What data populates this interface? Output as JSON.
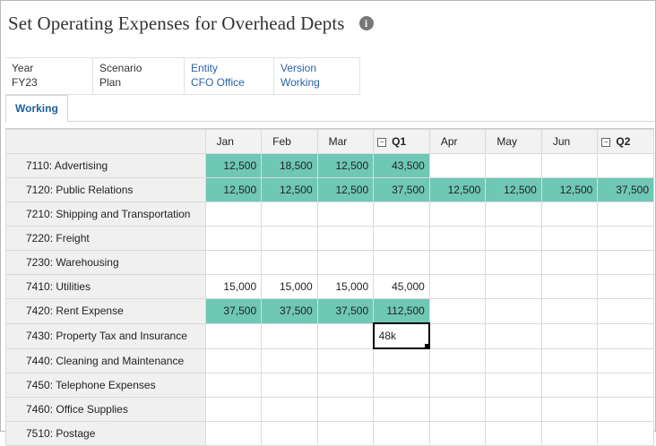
{
  "page_title": "Set Operating Expenses for Overhead Depts",
  "pov": [
    {
      "label": "Year",
      "value": "FY23",
      "link": false
    },
    {
      "label": "Scenario",
      "value": "Plan",
      "link": false
    },
    {
      "label": "Entity",
      "value": "CFO Office",
      "link": true
    },
    {
      "label": "Version",
      "value": "Working",
      "link": true
    }
  ],
  "tabs": [
    {
      "label": "Working",
      "active": true
    }
  ],
  "columns": [
    {
      "label": "Jan",
      "quarter": false
    },
    {
      "label": "Feb",
      "quarter": false
    },
    {
      "label": "Mar",
      "quarter": false
    },
    {
      "label": "Q1",
      "quarter": true
    },
    {
      "label": "Apr",
      "quarter": false
    },
    {
      "label": "May",
      "quarter": false
    },
    {
      "label": "Jun",
      "quarter": false
    },
    {
      "label": "Q2",
      "quarter": true
    }
  ],
  "collapse_symbol": "−",
  "rows": [
    {
      "label": "7110: Advertising",
      "values": [
        "12,500",
        "18,500",
        "12,500",
        "43,500",
        "",
        "",
        "",
        ""
      ],
      "highlight": [
        true,
        true,
        true,
        true,
        false,
        false,
        false,
        false
      ]
    },
    {
      "label": "7120: Public Relations",
      "values": [
        "12,500",
        "12,500",
        "12,500",
        "37,500",
        "12,500",
        "12,500",
        "12,500",
        "37,500"
      ],
      "highlight": [
        true,
        true,
        true,
        true,
        true,
        true,
        true,
        true
      ]
    },
    {
      "label": "7210: Shipping and Transportation",
      "values": [
        "",
        "",
        "",
        "",
        "",
        "",
        "",
        ""
      ],
      "highlight": [
        false,
        false,
        false,
        false,
        false,
        false,
        false,
        false
      ]
    },
    {
      "label": "7220: Freight",
      "values": [
        "",
        "",
        "",
        "",
        "",
        "",
        "",
        ""
      ],
      "highlight": [
        false,
        false,
        false,
        false,
        false,
        false,
        false,
        false
      ]
    },
    {
      "label": "7230: Warehousing",
      "values": [
        "",
        "",
        "",
        "",
        "",
        "",
        "",
        ""
      ],
      "highlight": [
        false,
        false,
        false,
        false,
        false,
        false,
        false,
        false
      ]
    },
    {
      "label": "7410: Utilities",
      "values": [
        "15,000",
        "15,000",
        "15,000",
        "45,000",
        "",
        "",
        "",
        ""
      ],
      "highlight": [
        false,
        false,
        false,
        false,
        false,
        false,
        false,
        false
      ]
    },
    {
      "label": "7420: Rent Expense",
      "values": [
        "37,500",
        "37,500",
        "37,500",
        "112,500",
        "",
        "",
        "",
        ""
      ],
      "highlight": [
        true,
        true,
        true,
        true,
        false,
        false,
        false,
        false
      ]
    },
    {
      "label": "7430: Property Tax and Insurance",
      "values": [
        "",
        "",
        "",
        "48k",
        "",
        "",
        "",
        ""
      ],
      "highlight": [
        false,
        false,
        false,
        false,
        false,
        false,
        false,
        false
      ]
    },
    {
      "label": "7440: Cleaning and Maintenance",
      "values": [
        "",
        "",
        "",
        "",
        "",
        "",
        "",
        ""
      ],
      "highlight": [
        false,
        false,
        false,
        false,
        false,
        false,
        false,
        false
      ]
    },
    {
      "label": "7450: Telephone Expenses",
      "values": [
        "",
        "",
        "",
        "",
        "",
        "",
        "",
        ""
      ],
      "highlight": [
        false,
        false,
        false,
        false,
        false,
        false,
        false,
        false
      ]
    },
    {
      "label": "7460: Office Supplies",
      "values": [
        "",
        "",
        "",
        "",
        "",
        "",
        "",
        ""
      ],
      "highlight": [
        false,
        false,
        false,
        false,
        false,
        false,
        false,
        false
      ]
    },
    {
      "label": "7510: Postage",
      "values": [
        "",
        "",
        "",
        "",
        "",
        "",
        "",
        ""
      ],
      "highlight": [
        false,
        false,
        false,
        false,
        false,
        false,
        false,
        false
      ]
    }
  ],
  "active_cell": {
    "row": 7,
    "col": 3
  },
  "colors": {
    "highlight": "#6fc7b6",
    "link": "#2a64a6"
  }
}
